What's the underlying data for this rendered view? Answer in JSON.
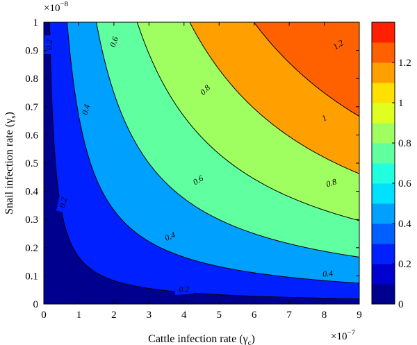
{
  "chart_data": {
    "type": "contour",
    "title": "",
    "xlabel": "Cattle infection rate (γ",
    "xlabel_sub": "c",
    "xlabel_close": ")",
    "ylabel": "Snail infection rate (γ",
    "ylabel_sub": "s",
    "ylabel_close": ")",
    "x_exponent_base": "×10",
    "x_exponent_power": "−7",
    "y_exponent_base": "×10",
    "y_exponent_power": "−8",
    "xlim": [
      0,
      9
    ],
    "ylim": [
      0,
      1
    ],
    "x_ticks": [
      "0",
      "1",
      "2",
      "3",
      "4",
      "5",
      "6",
      "7",
      "8",
      "9"
    ],
    "y_ticks": [
      "0",
      "0.1",
      "0.2",
      "0.3",
      "0.4",
      "0.5",
      "0.6",
      "0.7",
      "0.8",
      "0.9",
      "1"
    ],
    "model": "z = 0.155 * sqrt(x * y * 10)",
    "levels": [
      0,
      0.2,
      0.4,
      0.6,
      0.8,
      1.0,
      1.2
    ],
    "fill_bands": [
      {
        "from": 0.0,
        "to": 0.2,
        "color": "#00008f"
      },
      {
        "from": 0.2,
        "to": 0.4,
        "color": "#0020ff"
      },
      {
        "from": 0.4,
        "to": 0.6,
        "color": "#00a0ff"
      },
      {
        "from": 0.6,
        "to": 0.8,
        "color": "#60ffa0"
      },
      {
        "from": 0.8,
        "to": 1.0,
        "color": "#a0ff60"
      },
      {
        "from": 1.0,
        "to": 1.2,
        "color": "#ffa000"
      },
      {
        "from": 1.2,
        "to": 1.4,
        "color": "#ff6000"
      }
    ],
    "contour_labels": [
      {
        "text": "0.2",
        "x": 0.15,
        "y": 0.92
      },
      {
        "text": "0.2",
        "x": 0.55,
        "y": 0.36
      },
      {
        "text": "0.2",
        "x": 4.0,
        "y": 0.052
      },
      {
        "text": "0.4",
        "x": 1.2,
        "y": 0.69
      },
      {
        "text": "0.4",
        "x": 3.6,
        "y": 0.24
      },
      {
        "text": "0.4",
        "x": 8.1,
        "y": 0.108
      },
      {
        "text": "0.6",
        "x": 2.0,
        "y": 0.93
      },
      {
        "text": "0.6",
        "x": 4.4,
        "y": 0.44
      },
      {
        "text": "0.8",
        "x": 4.6,
        "y": 0.76
      },
      {
        "text": "0.8",
        "x": 8.2,
        "y": 0.43
      },
      {
        "text": "1",
        "x": 8.0,
        "y": 0.66
      },
      {
        "text": "1.2",
        "x": 8.4,
        "y": 0.92
      }
    ],
    "colorbar": {
      "ticks": [
        "0",
        "0.2",
        "0.4",
        "0.6",
        "0.8",
        "1",
        "1.2"
      ],
      "range": [
        0,
        1.4
      ],
      "colors": [
        "#00008f",
        "#0000cf",
        "#0020ff",
        "#0060ff",
        "#00a0ff",
        "#00e0ff",
        "#20ffdf",
        "#60ffa0",
        "#a0ff60",
        "#dfff20",
        "#ffe000",
        "#ffa000",
        "#ff6000",
        "#ff2000"
      ]
    }
  }
}
